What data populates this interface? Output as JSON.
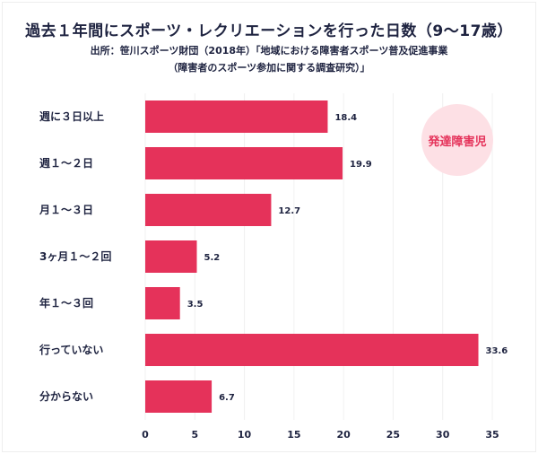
{
  "chart_data": {
    "type": "bar",
    "orientation": "horizontal",
    "title": "過去１年間にスポーツ・レクリエーションを行った日数（9～17歳）",
    "source_line1": "出所：笹川スポーツ財団（2018年）「地域における障害者スポーツ普及促進事業",
    "source_line2": "（障害者のスポーツ参加に関する調査研究）」",
    "annotation": "発達障害児",
    "categories": [
      "週に３日以上",
      "週１～２日",
      "月１～３日",
      "3ヶ月１～２回",
      "年１～３回",
      "行っていない",
      "分からない"
    ],
    "values": [
      18.4,
      19.9,
      12.7,
      5.2,
      3.5,
      33.6,
      6.7
    ],
    "value_labels": [
      "18.4",
      "19.9",
      "12.7",
      "5.2",
      "3.5",
      "33.6",
      "6.7"
    ],
    "xlim": [
      0,
      35
    ],
    "xticks": [
      "0",
      "5",
      "10",
      "15",
      "20",
      "25",
      "30",
      "35"
    ],
    "grid": true,
    "bar_color": "#e5325a",
    "annotation_bg": "#fde0e5"
  }
}
